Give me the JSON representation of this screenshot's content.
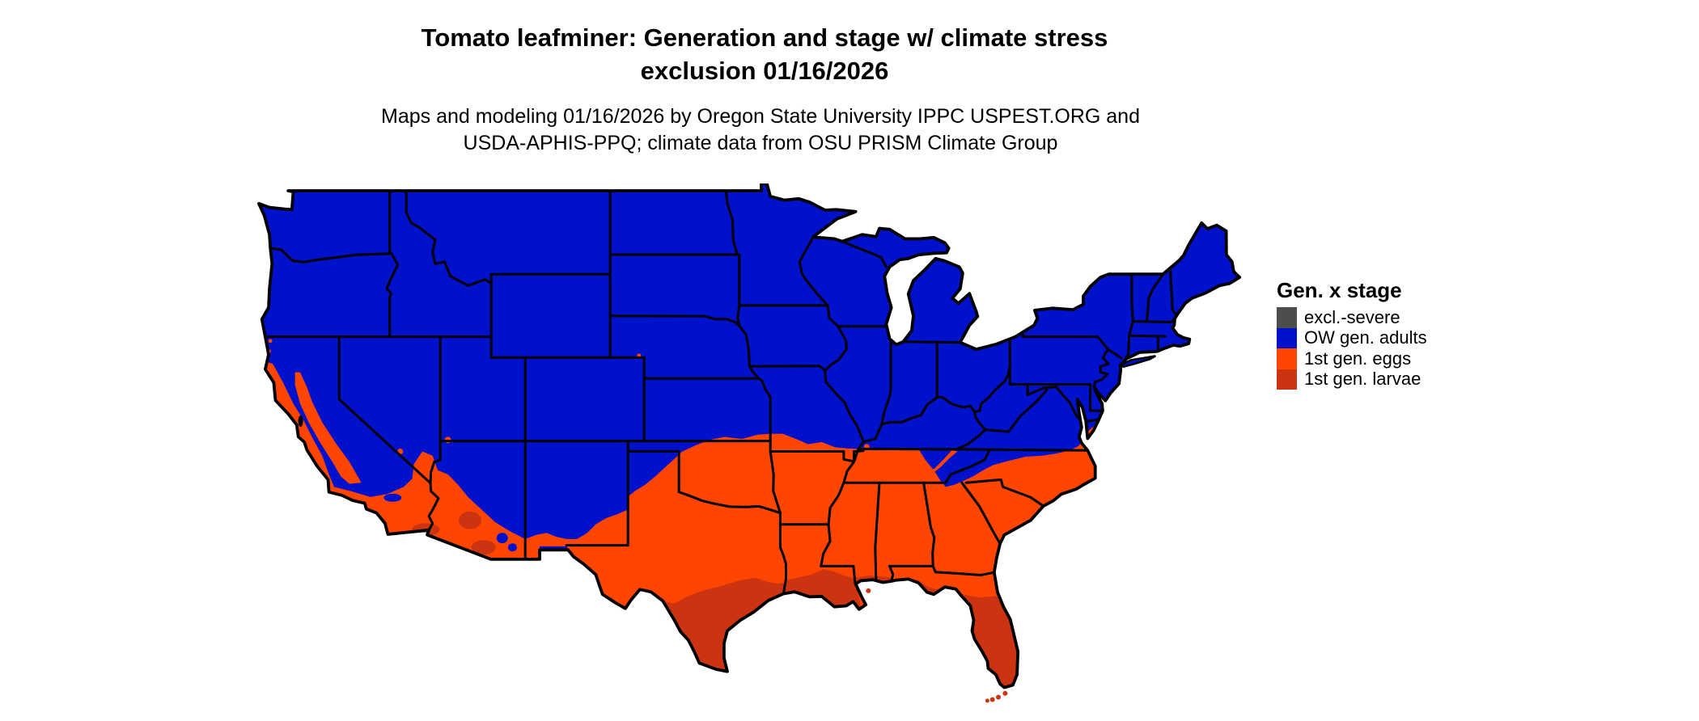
{
  "title": {
    "line1": "Tomato leafminer: Generation and stage w/ climate stress",
    "line2": "exclusion 01/16/2026"
  },
  "subtitle": {
    "line1": "Maps and modeling 01/16/2026 by Oregon State University IPPC USPEST.ORG and",
    "line2": "USDA-APHIS-PPQ; climate data from OSU PRISM Climate Group"
  },
  "legend": {
    "title": "Gen. x stage",
    "items": [
      {
        "label": "excl.-severe",
        "color": "#4D4D4D"
      },
      {
        "label": "OW gen. adults",
        "color": "#0011CC"
      },
      {
        "label": "1st gen. eggs",
        "color": "#FF4500"
      },
      {
        "label": "1st gen. larvae",
        "color": "#CC3311"
      }
    ]
  },
  "map": {
    "type": "choropleth-raster",
    "region": "Contiguous United States with state borders",
    "colors": {
      "excl_severe": "#4D4D4D",
      "ow_gen_adults": "#0011CC",
      "first_gen_eggs": "#FF4500",
      "first_gen_larvae": "#CC3311",
      "state_border": "#000000",
      "water_background": "#FFFFFF"
    },
    "zones": [
      {
        "stage": "OW gen. adults",
        "coverage": "Northern and central US: Pacific Northwest, Great Basin, Rockies, northern Plains, Midwest, Northeast, Appalachians, Virginia and north"
      },
      {
        "stage": "1st gen. eggs",
        "coverage": "Southern US: California Central Valley and coast, southern Arizona and New Mexico, most of Texas and Oklahoma, the South from Arkansas/Tennessee through the Carolinas"
      },
      {
        "stage": "1st gen. larvae",
        "coverage": "South Texas, Gulf coastal Louisiana/Mississippi/Alabama, Florida peninsula, Phoenix/Yuma desert lowlands"
      },
      {
        "stage": "excl.-severe",
        "coverage": "not visible on map"
      }
    ]
  }
}
